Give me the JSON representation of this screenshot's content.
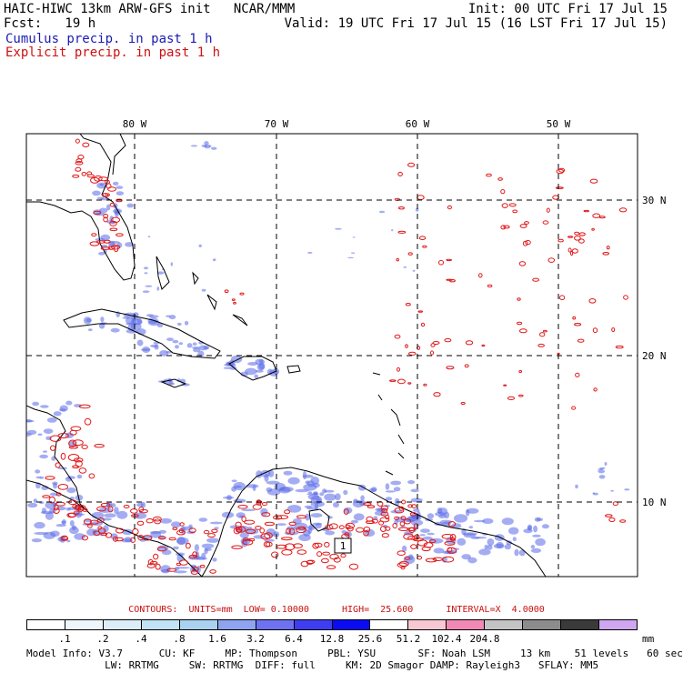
{
  "header": {
    "title_left": "HAIC-HIWC 13km ARW-GFS init   NCAR/MMM",
    "fcst": "Fcst:   19 h",
    "init": "Init: 00 UTC Fri 17 Jul 15",
    "valid": "Valid: 19 UTC Fri 17 Jul 15 (16 LST Fri 17 Jul 15)",
    "cumulus": "Cumulus precip. in past 1 h",
    "explicit": "Explicit precip. in past 1 h"
  },
  "map": {
    "lon_labels": [
      "80 W",
      "70 W",
      "60 W",
      "50 W"
    ],
    "lat_labels": [
      "30 N",
      "20 N",
      "10 N"
    ],
    "box_label": "1",
    "colors": {
      "cumulus": "#4a5ae8",
      "explicit": "#e01818",
      "coast": "#000000",
      "grid": "#000000"
    }
  },
  "contours_line": "CONTOURS:  UNITS=mm  LOW= 0.10000      HIGH=  25.600      INTERVAL=X  4.0000",
  "legend": {
    "colors": [
      "#ffffff",
      "#eef6fb",
      "#dbeef8",
      "#c2e2f5",
      "#a9d2f0",
      "#8fa4f0",
      "#6e72f2",
      "#3e3ef0",
      "#0b0bf4",
      "#ffffff",
      "#f7c8d2",
      "#f08ab4",
      "#c4c4c4",
      "#8c8c8c",
      "#3a3a3a",
      "#cfa6f0"
    ],
    "levels": [
      ".1",
      ".2",
      ".4",
      ".8",
      "1.6",
      "3.2",
      "6.4",
      "12.8",
      "25.6",
      "51.2",
      "102.4",
      "204.8"
    ],
    "unit": "mm"
  },
  "model_info": {
    "line1": "Model Info: V3.7      CU: KF     MP: Thompson     PBL: YSU       SF: Noah LSM     13 km    51 levels   60 sec",
    "line2": "             LW: RRTMG     SW: RRTMG  DIFF: full     KM: 2D Smagor DAMP: Rayleigh3   SFLAY: MM5"
  }
}
